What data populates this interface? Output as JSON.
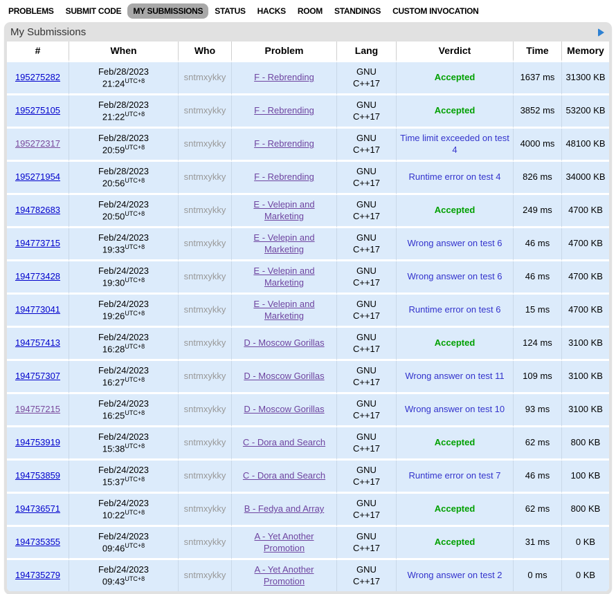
{
  "nav": {
    "items": [
      {
        "label": "PROBLEMS",
        "active": false
      },
      {
        "label": "SUBMIT CODE",
        "active": false
      },
      {
        "label": "MY SUBMISSIONS",
        "active": true
      },
      {
        "label": "STATUS",
        "active": false
      },
      {
        "label": "HACKS",
        "active": false
      },
      {
        "label": "ROOM",
        "active": false
      },
      {
        "label": "STANDINGS",
        "active": false
      },
      {
        "label": "CUSTOM INVOCATION",
        "active": false
      }
    ]
  },
  "panel": {
    "title": "My Submissions",
    "arrow_icon": "right-triangle"
  },
  "table": {
    "headers": [
      "#",
      "When",
      "Who",
      "Problem",
      "Lang",
      "Verdict",
      "Time",
      "Memory"
    ],
    "rows": [
      {
        "id": "195275282",
        "visited": false,
        "date": "Feb/28/2023",
        "time": "21:24",
        "tz": "UTC+8",
        "who": "sntmxykky",
        "problem": "F - Rebrending",
        "lang": "GNU C++17",
        "verdict": "Accepted",
        "status": "accepted",
        "exec_time": "1637 ms",
        "memory": "31300 KB"
      },
      {
        "id": "195275105",
        "visited": false,
        "date": "Feb/28/2023",
        "time": "21:22",
        "tz": "UTC+8",
        "who": "sntmxykky",
        "problem": "F - Rebrending",
        "lang": "GNU C++17",
        "verdict": "Accepted",
        "status": "accepted",
        "exec_time": "3852 ms",
        "memory": "53200 KB"
      },
      {
        "id": "195272317",
        "visited": true,
        "date": "Feb/28/2023",
        "time": "20:59",
        "tz": "UTC+8",
        "who": "sntmxykky",
        "problem": "F - Rebrending",
        "lang": "GNU C++17",
        "verdict": "Time limit exceeded on test 4",
        "status": "failed",
        "exec_time": "4000 ms",
        "memory": "48100 KB"
      },
      {
        "id": "195271954",
        "visited": false,
        "date": "Feb/28/2023",
        "time": "20:56",
        "tz": "UTC+8",
        "who": "sntmxykky",
        "problem": "F - Rebrending",
        "lang": "GNU C++17",
        "verdict": "Runtime error on test 4",
        "status": "failed",
        "exec_time": "826 ms",
        "memory": "34000 KB"
      },
      {
        "id": "194782683",
        "visited": false,
        "date": "Feb/24/2023",
        "time": "20:50",
        "tz": "UTC+8",
        "who": "sntmxykky",
        "problem": "E - Velepin and Marketing",
        "lang": "GNU C++17",
        "verdict": "Accepted",
        "status": "accepted",
        "exec_time": "249 ms",
        "memory": "4700 KB"
      },
      {
        "id": "194773715",
        "visited": false,
        "date": "Feb/24/2023",
        "time": "19:33",
        "tz": "UTC+8",
        "who": "sntmxykky",
        "problem": "E - Velepin and Marketing",
        "lang": "GNU C++17",
        "verdict": "Wrong answer on test 6",
        "status": "failed",
        "exec_time": "46 ms",
        "memory": "4700 KB"
      },
      {
        "id": "194773428",
        "visited": false,
        "date": "Feb/24/2023",
        "time": "19:30",
        "tz": "UTC+8",
        "who": "sntmxykky",
        "problem": "E - Velepin and Marketing",
        "lang": "GNU C++17",
        "verdict": "Wrong answer on test 6",
        "status": "failed",
        "exec_time": "46 ms",
        "memory": "4700 KB"
      },
      {
        "id": "194773041",
        "visited": false,
        "date": "Feb/24/2023",
        "time": "19:26",
        "tz": "UTC+8",
        "who": "sntmxykky",
        "problem": "E - Velepin and Marketing",
        "lang": "GNU C++17",
        "verdict": "Runtime error on test 6",
        "status": "failed",
        "exec_time": "15 ms",
        "memory": "4700 KB"
      },
      {
        "id": "194757413",
        "visited": false,
        "date": "Feb/24/2023",
        "time": "16:28",
        "tz": "UTC+8",
        "who": "sntmxykky",
        "problem": "D - Moscow Gorillas",
        "lang": "GNU C++17",
        "verdict": "Accepted",
        "status": "accepted",
        "exec_time": "124 ms",
        "memory": "3100 KB"
      },
      {
        "id": "194757307",
        "visited": false,
        "date": "Feb/24/2023",
        "time": "16:27",
        "tz": "UTC+8",
        "who": "sntmxykky",
        "problem": "D - Moscow Gorillas",
        "lang": "GNU C++17",
        "verdict": "Wrong answer on test 11",
        "status": "failed",
        "exec_time": "109 ms",
        "memory": "3100 KB"
      },
      {
        "id": "194757215",
        "visited": true,
        "date": "Feb/24/2023",
        "time": "16:25",
        "tz": "UTC+8",
        "who": "sntmxykky",
        "problem": "D - Moscow Gorillas",
        "lang": "GNU C++17",
        "verdict": "Wrong answer on test 10",
        "status": "failed",
        "exec_time": "93 ms",
        "memory": "3100 KB"
      },
      {
        "id": "194753919",
        "visited": false,
        "date": "Feb/24/2023",
        "time": "15:38",
        "tz": "UTC+8",
        "who": "sntmxykky",
        "problem": "C - Dora and Search",
        "lang": "GNU C++17",
        "verdict": "Accepted",
        "status": "accepted",
        "exec_time": "62 ms",
        "memory": "800 KB"
      },
      {
        "id": "194753859",
        "visited": false,
        "date": "Feb/24/2023",
        "time": "15:37",
        "tz": "UTC+8",
        "who": "sntmxykky",
        "problem": "C - Dora and Search",
        "lang": "GNU C++17",
        "verdict": "Runtime error on test 7",
        "status": "failed",
        "exec_time": "46 ms",
        "memory": "100 KB"
      },
      {
        "id": "194736571",
        "visited": false,
        "date": "Feb/24/2023",
        "time": "10:22",
        "tz": "UTC+8",
        "who": "sntmxykky",
        "problem": "B - Fedya and Array",
        "lang": "GNU C++17",
        "verdict": "Accepted",
        "status": "accepted",
        "exec_time": "62 ms",
        "memory": "800 KB"
      },
      {
        "id": "194735355",
        "visited": false,
        "date": "Feb/24/2023",
        "time": "09:46",
        "tz": "UTC+8",
        "who": "sntmxykky",
        "problem": "A - Yet Another Promotion",
        "lang": "GNU C++17",
        "verdict": "Accepted",
        "status": "accepted",
        "exec_time": "31 ms",
        "memory": "0 KB"
      },
      {
        "id": "194735279",
        "visited": false,
        "date": "Feb/24/2023",
        "time": "09:43",
        "tz": "UTC+8",
        "who": "sntmxykky",
        "problem": "A - Yet Another Promotion",
        "lang": "GNU C++17",
        "verdict": "Wrong answer on test 2",
        "status": "failed",
        "exec_time": "0 ms",
        "memory": "0 KB"
      }
    ]
  },
  "colors": {
    "accepted_green": "#00a000",
    "failed_verdict_blue": "#3333cc",
    "link_blue": "#0000cc",
    "visited_link_purple": "#7a4a9d",
    "row_background": "#dcebfb",
    "panel_gray": "#e1e1e1",
    "nav_active_gray": "#a8a8a8",
    "arrow_blue": "#2e81d2"
  }
}
